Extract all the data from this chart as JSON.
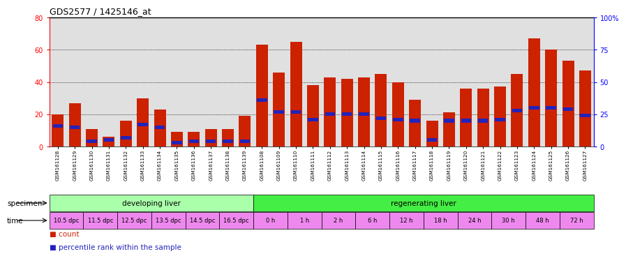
{
  "title": "GDS2577 / 1425146_at",
  "samples": [
    "GSM161128",
    "GSM161129",
    "GSM161130",
    "GSM161131",
    "GSM161132",
    "GSM161133",
    "GSM161134",
    "GSM161135",
    "GSM161136",
    "GSM161137",
    "GSM161138",
    "GSM161139",
    "GSM161108",
    "GSM161109",
    "GSM161110",
    "GSM161111",
    "GSM161112",
    "GSM161113",
    "GSM161114",
    "GSM161115",
    "GSM161116",
    "GSM161117",
    "GSM161118",
    "GSM161119",
    "GSM161120",
    "GSM161121",
    "GSM161122",
    "GSM161123",
    "GSM161124",
    "GSM161125",
    "GSM161126",
    "GSM161127"
  ],
  "count_values": [
    20,
    27,
    11,
    6,
    16,
    30,
    23,
    9,
    9,
    11,
    11,
    19,
    63,
    46,
    65,
    38,
    43,
    42,
    43,
    45,
    40,
    29,
    16,
    21,
    36,
    36,
    37,
    45,
    67,
    60,
    53,
    47
  ],
  "percentile_values": [
    16,
    15,
    4,
    5,
    7,
    17,
    15,
    3,
    4,
    4,
    4,
    4,
    36,
    27,
    27,
    21,
    25,
    25,
    25,
    22,
    21,
    20,
    5,
    20,
    20,
    20,
    21,
    28,
    30,
    30,
    29,
    24
  ],
  "specimen_groups": [
    {
      "label": "developing liver",
      "start": 0,
      "end": 12,
      "color": "#aaffaa"
    },
    {
      "label": "regenerating liver",
      "start": 12,
      "end": 32,
      "color": "#44ee44"
    }
  ],
  "time_groups": [
    {
      "label": "10.5 dpc",
      "start": 0,
      "end": 2
    },
    {
      "label": "11.5 dpc",
      "start": 2,
      "end": 4
    },
    {
      "label": "12.5 dpc",
      "start": 4,
      "end": 6
    },
    {
      "label": "13.5 dpc",
      "start": 6,
      "end": 8
    },
    {
      "label": "14.5 dpc",
      "start": 8,
      "end": 10
    },
    {
      "label": "16.5 dpc",
      "start": 10,
      "end": 12
    },
    {
      "label": "0 h",
      "start": 12,
      "end": 14
    },
    {
      "label": "1 h",
      "start": 14,
      "end": 16
    },
    {
      "label": "2 h",
      "start": 16,
      "end": 18
    },
    {
      "label": "6 h",
      "start": 18,
      "end": 20
    },
    {
      "label": "12 h",
      "start": 20,
      "end": 22
    },
    {
      "label": "18 h",
      "start": 22,
      "end": 24
    },
    {
      "label": "24 h",
      "start": 24,
      "end": 26
    },
    {
      "label": "30 h",
      "start": 26,
      "end": 28
    },
    {
      "label": "48 h",
      "start": 28,
      "end": 30
    },
    {
      "label": "72 h",
      "start": 30,
      "end": 32
    }
  ],
  "time_color": "#ee88ee",
  "bar_color_red": "#cc2200",
  "bar_color_blue": "#2222bb",
  "ylim_left": [
    0,
    80
  ],
  "ylim_right": [
    0,
    100
  ],
  "yticks_left": [
    0,
    20,
    40,
    60,
    80
  ],
  "yticks_right": [
    0,
    25,
    50,
    75,
    100
  ],
  "yticklabels_right": [
    "0",
    "25",
    "50",
    "75",
    "100%"
  ],
  "bg_color": "#ffffff",
  "plot_bg": "#e0e0e0"
}
